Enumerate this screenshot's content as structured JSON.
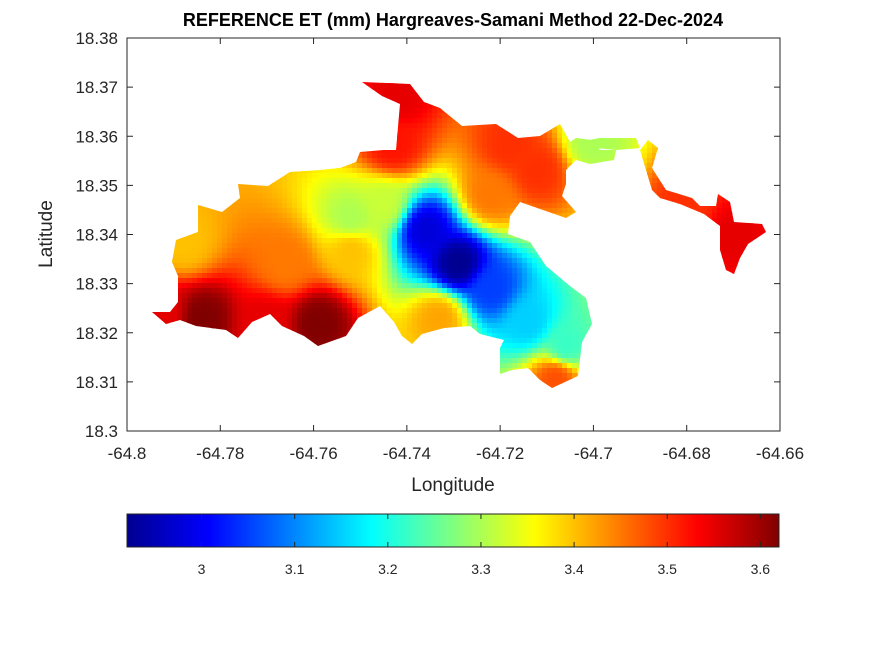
{
  "chart_data": {
    "type": "heatmap",
    "title": "REFERENCE ET (mm) Hargreaves-Samani Method  22-Dec-2024",
    "xlabel": "Longitude",
    "ylabel": "Latitude",
    "xlim": [
      -64.8,
      -64.66
    ],
    "ylim": [
      18.3,
      18.38
    ],
    "x_ticks": [
      -64.8,
      -64.78,
      -64.76,
      -64.74,
      -64.72,
      -64.7,
      -64.68,
      -64.66
    ],
    "y_ticks": [
      18.3,
      18.31,
      18.32,
      18.33,
      18.34,
      18.35,
      18.36,
      18.37,
      18.38
    ],
    "x_tick_labels": [
      "-64.8",
      "-64.78",
      "-64.76",
      "-64.74",
      "-64.72",
      "-64.7",
      "-64.68",
      "-64.66"
    ],
    "y_tick_labels": [
      "18.3",
      "18.31",
      "18.32",
      "18.33",
      "18.34",
      "18.35",
      "18.36",
      "18.37",
      "18.38"
    ],
    "grid": false,
    "colormap": "jet",
    "clim": [
      2.92,
      3.62
    ],
    "colorbar": {
      "location": "below",
      "ticks": [
        3.0,
        3.1,
        3.2,
        3.3,
        3.4,
        3.5,
        3.6
      ],
      "tick_labels": [
        "3",
        "3.1",
        "3.2",
        "3.3",
        "3.4",
        "3.5",
        "3.6"
      ]
    },
    "hotspots": [
      {
        "lon": -64.729,
        "lat": 18.334,
        "value": 2.93
      },
      {
        "lon": -64.736,
        "lat": 18.341,
        "value": 2.98
      },
      {
        "lon": -64.722,
        "lat": 18.329,
        "value": 3.05
      },
      {
        "lon": -64.714,
        "lat": 18.322,
        "value": 3.15
      },
      {
        "lon": -64.706,
        "lat": 18.317,
        "value": 3.22
      },
      {
        "lon": -64.745,
        "lat": 18.346,
        "value": 3.32
      },
      {
        "lon": -64.752,
        "lat": 18.343,
        "value": 3.3
      },
      {
        "lon": -64.7,
        "lat": 18.359,
        "value": 3.3
      },
      {
        "lon": -64.784,
        "lat": 18.323,
        "value": 3.62
      },
      {
        "lon": -64.759,
        "lat": 18.322,
        "value": 3.62
      },
      {
        "lon": -64.792,
        "lat": 18.324,
        "value": 3.55
      },
      {
        "lon": -64.77,
        "lat": 18.322,
        "value": 3.55
      },
      {
        "lon": -64.743,
        "lat": 18.358,
        "value": 3.52
      },
      {
        "lon": -64.742,
        "lat": 18.368,
        "value": 3.55
      },
      {
        "lon": -64.718,
        "lat": 18.358,
        "value": 3.5
      },
      {
        "lon": -64.722,
        "lat": 18.348,
        "value": 3.45
      },
      {
        "lon": -64.712,
        "lat": 18.353,
        "value": 3.5
      },
      {
        "lon": -64.67,
        "lat": 18.34,
        "value": 3.55
      },
      {
        "lon": -64.68,
        "lat": 18.345,
        "value": 3.5
      },
      {
        "lon": -64.708,
        "lat": 18.311,
        "value": 3.48
      },
      {
        "lon": -64.733,
        "lat": 18.323,
        "value": 3.42
      },
      {
        "lon": -64.766,
        "lat": 18.334,
        "value": 3.45
      },
      {
        "lon": -64.788,
        "lat": 18.338,
        "value": 3.4
      },
      {
        "lon": -64.752,
        "lat": 18.337,
        "value": 3.4
      }
    ],
    "background_value": 3.4
  }
}
